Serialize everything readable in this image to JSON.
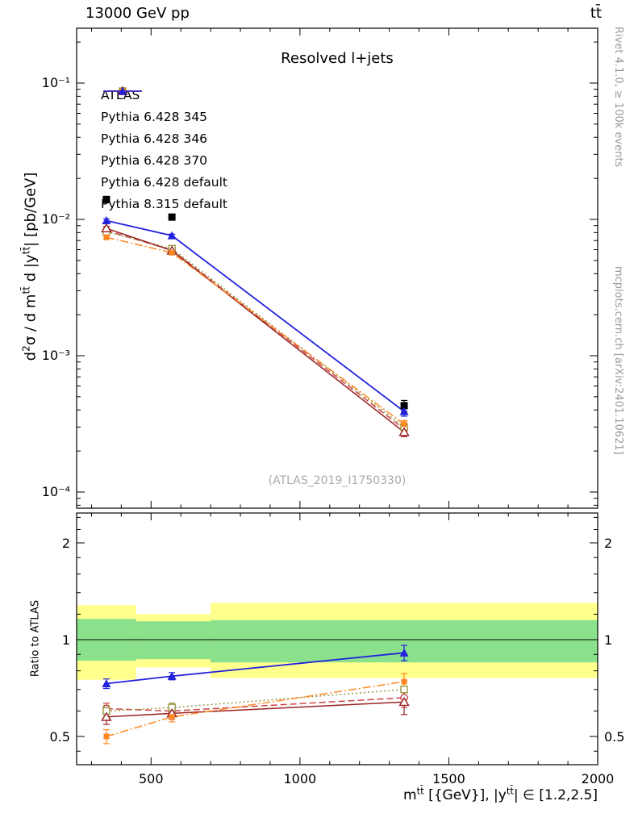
{
  "header": {
    "left": "13000 GeV pp",
    "right": "tt̄"
  },
  "panel_title": "Resolved l+jets",
  "watermark": "(ATLAS_2019_I1750330)",
  "side_labels": {
    "top": "Rivet 4.1.0, ≥ 100k events",
    "bottom": "mcplots.cern.ch [arXiv:2401.10621]"
  },
  "axis_labels": {
    "y_main_parts": {
      "p1": "d",
      "p2": "2",
      "p3": "σ / d m",
      "p4": "tt̄",
      "p5": " d |y",
      "p6": "tt̄",
      "p7": "| [pb/GeV]"
    },
    "y_ratio": "Ratio to ATLAS",
    "x_parts": {
      "p1": "m",
      "p2": "tt̄",
      "p3": " [{GeV}], |y",
      "p4": "tt̄",
      "p5": "| ∈ [1.2,2.5]"
    }
  },
  "chart_data": [
    {
      "type": "line",
      "title": "Resolved l+jets",
      "ylabel": "d2σ / d mtt d |ytt| [pb/GeV]",
      "xlabel": "mtt [{GeV}], |ytt| in [1.2,2.5]",
      "ylog": true,
      "xlim": [
        250,
        2000
      ],
      "ylim": [
        7.6e-05,
        0.25
      ],
      "x": [
        350,
        570,
        1350
      ],
      "xticks": [
        {
          "v": 500,
          "label": "500"
        },
        {
          "v": 1000,
          "label": "1000"
        },
        {
          "v": 1500,
          "label": "1500"
        },
        {
          "v": 2000,
          "label": "2000"
        }
      ],
      "x_minor_step": 100,
      "yticks": [
        {
          "v": 0.1,
          "label": "10⁻¹"
        },
        {
          "v": 0.01,
          "label": "10⁻²"
        },
        {
          "v": 0.001,
          "label": "10⁻³"
        },
        {
          "v": 0.0001,
          "label": "10⁻⁴"
        }
      ],
      "series": [
        {
          "name": "ATLAS",
          "color": "#000000",
          "line": "none",
          "marker": "filled-square",
          "values": [
            0.014,
            0.0104,
            0.00043
          ],
          "yerr": [
            0.0007,
            0.0005,
            4e-05
          ]
        },
        {
          "name": "Pythia 6.428 345",
          "color": "#cc4444",
          "line": "dashed",
          "marker": "open-circle",
          "values": [
            0.0083,
            0.00595,
            0.00029
          ],
          "yerr": [
            0.0003,
            0.0002,
            1.8e-05
          ]
        },
        {
          "name": "Pythia 6.428 346",
          "color": "#999944",
          "line": "dotted",
          "marker": "open-square",
          "values": [
            0.0081,
            0.0061,
            0.0003
          ],
          "yerr": [
            0.0003,
            0.0002,
            1.8e-05
          ]
        },
        {
          "name": "Pythia 6.428 370",
          "color": "#992222",
          "line": "solid",
          "marker": "open-triangle",
          "values": [
            0.0086,
            0.0059,
            0.000275
          ],
          "yerr": [
            0.0003,
            0.0002,
            2e-05
          ]
        },
        {
          "name": "Pythia 6.428 default",
          "color": "#ff8822",
          "line": "dashdot",
          "marker": "filled-square-small",
          "values": [
            0.0074,
            0.0057,
            0.000315
          ],
          "yerr": [
            0.0003,
            0.0002,
            2e-05
          ]
        },
        {
          "name": "Pythia 8.315 default",
          "color": "#2222dd",
          "line": "solid",
          "marker": "filled-triangle",
          "values": [
            0.0098,
            0.0076,
            0.00039
          ],
          "yerr": [
            0.0003,
            0.0002,
            3e-05
          ]
        }
      ]
    },
    {
      "type": "ratio",
      "ylabel": "Ratio to ATLAS",
      "ylog": true,
      "xlim": [
        250,
        2000
      ],
      "ylim": [
        0.41,
        2.48
      ],
      "x": [
        350,
        570,
        1350
      ],
      "yticks": [
        {
          "v": 2,
          "label": "2"
        },
        {
          "v": 1,
          "label": "1"
        },
        {
          "v": 0.5,
          "label": "0.5"
        }
      ],
      "y_minor": [
        0.45,
        0.6,
        0.7,
        0.8,
        0.9,
        1.2,
        1.4,
        1.6,
        1.8,
        2.2,
        2.4
      ],
      "refline": 1,
      "bands": [
        {
          "name": "yellow-band",
          "color": "#ffff8c",
          "segments": [
            {
              "x0": 250,
              "x1": 450,
              "lo": 0.75,
              "hi": 1.28
            },
            {
              "x0": 450,
              "x1": 700,
              "lo": 0.82,
              "hi": 1.2
            },
            {
              "x0": 700,
              "x1": 2000,
              "lo": 0.76,
              "hi": 1.3
            }
          ]
        },
        {
          "name": "green-band",
          "color": "#8be08b",
          "segments": [
            {
              "x0": 250,
              "x1": 450,
              "lo": 0.86,
              "hi": 1.16
            },
            {
              "x0": 450,
              "x1": 700,
              "lo": 0.87,
              "hi": 1.14
            },
            {
              "x0": 700,
              "x1": 2000,
              "lo": 0.85,
              "hi": 1.15
            }
          ]
        }
      ],
      "series": [
        {
          "name": "Pythia 6.428 345",
          "color": "#cc4444",
          "line": "dashed",
          "marker": "open-circle",
          "values": [
            0.61,
            0.6,
            0.66
          ],
          "yerr": [
            0.025,
            0.02,
            0.045
          ]
        },
        {
          "name": "Pythia 6.428 346",
          "color": "#999944",
          "line": "dotted",
          "marker": "open-square",
          "values": [
            0.6,
            0.615,
            0.7
          ],
          "yerr": [
            0.025,
            0.02,
            0.045
          ]
        },
        {
          "name": "Pythia 6.428 370",
          "color": "#992222",
          "line": "solid",
          "marker": "open-triangle",
          "values": [
            0.575,
            0.59,
            0.64
          ],
          "yerr": [
            0.03,
            0.025,
            0.055
          ]
        },
        {
          "name": "Pythia 6.428 default",
          "color": "#ff8822",
          "line": "dashdot",
          "marker": "filled-square-small",
          "values": [
            0.5,
            0.575,
            0.74
          ],
          "yerr": [
            0.025,
            0.02,
            0.045
          ]
        },
        {
          "name": "Pythia 8.315 default",
          "color": "#2222dd",
          "line": "solid",
          "marker": "filled-triangle",
          "values": [
            0.73,
            0.77,
            0.91
          ],
          "yerr": [
            0.025,
            0.02,
            0.05
          ]
        }
      ]
    }
  ]
}
